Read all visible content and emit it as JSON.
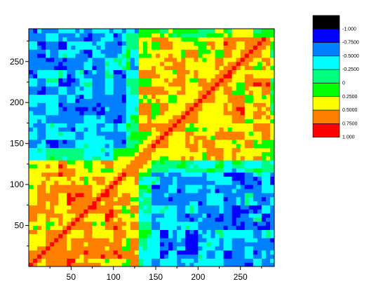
{
  "chart_data": {
    "type": "heatmap",
    "title": "",
    "xlabel": "",
    "ylabel": "",
    "xlim": [
      0,
      290
    ],
    "ylim": [
      0,
      290
    ],
    "x_ticks": [
      50,
      100,
      150,
      200,
      250
    ],
    "y_ticks": [
      50,
      100,
      150,
      200,
      250
    ],
    "x_tick_labels": [
      "50",
      "100",
      "150",
      "200",
      "250"
    ],
    "y_tick_labels": [
      "50",
      "100",
      "150",
      "200",
      "250"
    ],
    "grid": false,
    "legend_position": "right",
    "levels": [
      {
        "label": "-1.000",
        "color": "#000000"
      },
      {
        "label": "-0.7500",
        "color": "#0000ff"
      },
      {
        "label": "-0.5000",
        "color": "#0080ff"
      },
      {
        "label": "-0.2500",
        "color": "#00ffff"
      },
      {
        "label": "0",
        "color": "#00ff80"
      },
      {
        "label": "0.2500",
        "color": "#00ff00"
      },
      {
        "label": "0.5000",
        "color": "#ffff00"
      },
      {
        "label": "0.7500",
        "color": "#ff8000"
      },
      {
        "label": "1.000",
        "color": "#ff0000"
      }
    ],
    "blocks": [
      {
        "x_range": [
          0,
          130
        ],
        "y_range": [
          0,
          130
        ],
        "level": "0.5000 to 0.7500",
        "description_value": 0.65
      },
      {
        "x_range": [
          130,
          290
        ],
        "y_range": [
          130,
          290
        ],
        "level": "0.5000 to 0.7500",
        "description_value": 0.6
      },
      {
        "x_range": [
          0,
          130
        ],
        "y_range": [
          130,
          290
        ],
        "level": "-0.5000 to -0.2500",
        "description_value": -0.4
      },
      {
        "x_range": [
          130,
          290
        ],
        "y_range": [
          0,
          130
        ],
        "level": "-0.5000 to -0.2500",
        "description_value": -0.4
      }
    ],
    "diagonal_value": 1.0,
    "border_value": 0.25
  }
}
